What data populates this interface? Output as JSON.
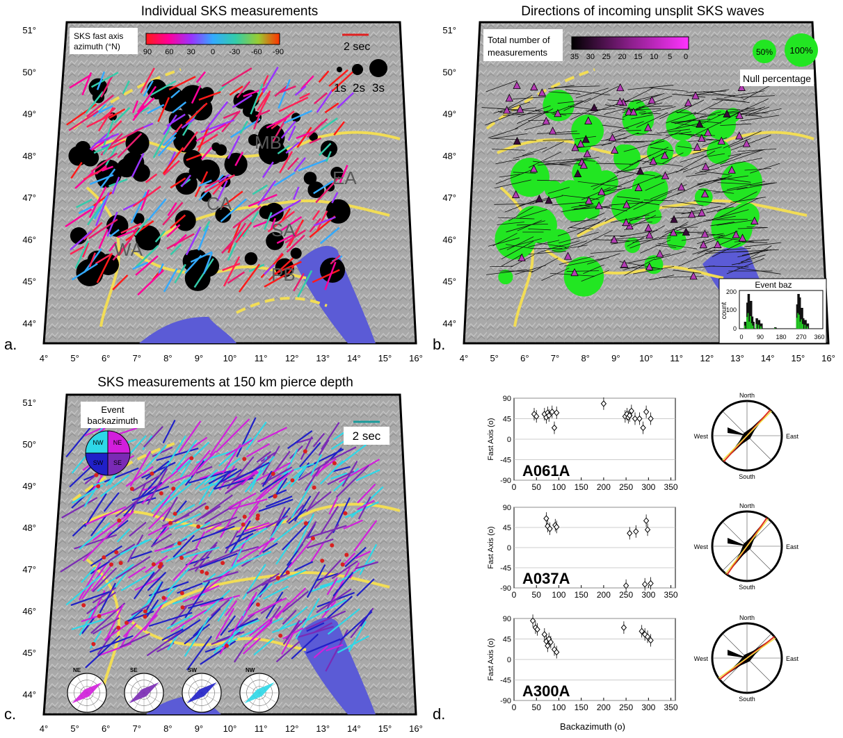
{
  "panels": {
    "a": {
      "letter": "a.",
      "title": "Individual SKS measurements",
      "legend_title_line1": "SKS fast axis",
      "legend_title_line2": "azimuth (°N)",
      "colorbar_ticks": [
        "90",
        "60",
        "30",
        "0",
        "-30",
        "-60",
        "-90"
      ],
      "scale_label": "2 sec",
      "size_labels": [
        "1s",
        "2s",
        "3s"
      ],
      "region_labels": [
        "MB",
        "EA",
        "CA",
        "SA",
        "WA",
        "PB"
      ]
    },
    "b": {
      "letter": "b.",
      "title": "Directions of incoming unsplit SKS waves",
      "legend_title_line1": "Total number of",
      "legend_title_line2": "measurements",
      "colorbar_ticks": [
        "35",
        "30",
        "25",
        "20",
        "15",
        "10",
        "5",
        "0"
      ],
      "null_labels": [
        "50%",
        "100%"
      ],
      "null_title": "Null percentage",
      "inset": {
        "title": "Event baz",
        "ylabel": "count",
        "yticks": [
          "0",
          "100",
          "200"
        ],
        "xticks": [
          "0",
          "90",
          "180",
          "270",
          "360"
        ]
      }
    },
    "c": {
      "letter": "c.",
      "title": "SKS measurements at 150 km pierce depth",
      "legend_title_line1": "Event",
      "legend_title_line2": "backazimuth",
      "quadrants": [
        "NW",
        "NE",
        "SW",
        "SE"
      ],
      "scale_label": "2 sec",
      "rose_labels": [
        "NE",
        "SE",
        "SW",
        "NW"
      ]
    },
    "d": {
      "letter": "d.",
      "xlabel": "Backazimuth (o)",
      "ylabel": "Fast Axis (o)",
      "compass": {
        "north": "North",
        "south": "South",
        "east": "East",
        "west": "West"
      }
    }
  },
  "map_axes": {
    "lon_labels": [
      "4°",
      "5°",
      "6°",
      "7°",
      "8°",
      "9°",
      "10°",
      "11°",
      "12°",
      "13°",
      "14°",
      "15°",
      "16°"
    ],
    "lat_labels": [
      "44°",
      "45°",
      "46°",
      "47°",
      "48°",
      "49°",
      "50°",
      "51°"
    ]
  },
  "colors": {
    "map_land": "#a9a9a9",
    "sea": "#5b5bd6",
    "faults": "#f2dd55",
    "null_disc": "#22e622",
    "station_triangle": "#b43cb4",
    "pierce_ne": "#d21edc",
    "pierce_se": "#7a2ab5",
    "pierce_sw": "#2020c8",
    "pierce_nw": "#2ed8e8"
  },
  "chart_data": [
    {
      "type": "scatter",
      "title": "A061A",
      "xlabel": "Backazimuth (o)",
      "ylabel": "Fast Axis (o)",
      "xlim": [
        0,
        360
      ],
      "ylim": [
        -90,
        90
      ],
      "xticks": [
        0,
        50,
        100,
        150,
        200,
        250,
        300,
        350
      ],
      "yticks": [
        90,
        45,
        0,
        -45,
        -90
      ],
      "points": [
        {
          "x": 45,
          "y": 55
        },
        {
          "x": 50,
          "y": 50
        },
        {
          "x": 68,
          "y": 55
        },
        {
          "x": 72,
          "y": 48
        },
        {
          "x": 75,
          "y": 58
        },
        {
          "x": 78,
          "y": 52
        },
        {
          "x": 85,
          "y": 60
        },
        {
          "x": 90,
          "y": 25
        },
        {
          "x": 95,
          "y": 58
        },
        {
          "x": 200,
          "y": 78
        },
        {
          "x": 248,
          "y": 50
        },
        {
          "x": 252,
          "y": 55
        },
        {
          "x": 255,
          "y": 48
        },
        {
          "x": 258,
          "y": 52
        },
        {
          "x": 262,
          "y": 62
        },
        {
          "x": 270,
          "y": 45
        },
        {
          "x": 280,
          "y": 45
        },
        {
          "x": 288,
          "y": 25
        },
        {
          "x": 295,
          "y": 60
        },
        {
          "x": 305,
          "y": 45
        }
      ]
    },
    {
      "type": "scatter",
      "title": "A037A",
      "xlabel": "Backazimuth (o)",
      "ylabel": "Fast Axis (o)",
      "xlim": [
        0,
        360
      ],
      "ylim": [
        -90,
        90
      ],
      "xticks": [
        0,
        50,
        100,
        150,
        200,
        250,
        300,
        350
      ],
      "yticks": [
        90,
        45,
        0,
        -45,
        -90
      ],
      "points": [
        {
          "x": 72,
          "y": 65
        },
        {
          "x": 75,
          "y": 48
        },
        {
          "x": 80,
          "y": 42
        },
        {
          "x": 92,
          "y": 50
        },
        {
          "x": 95,
          "y": 46
        },
        {
          "x": 250,
          "y": -85
        },
        {
          "x": 258,
          "y": 32
        },
        {
          "x": 272,
          "y": 36
        },
        {
          "x": 292,
          "y": -82
        },
        {
          "x": 295,
          "y": 60
        },
        {
          "x": 298,
          "y": 40
        },
        {
          "x": 305,
          "y": -80
        }
      ]
    },
    {
      "type": "scatter",
      "title": "A300A",
      "xlabel": "Backazimuth (o)",
      "ylabel": "Fast Axis (o)",
      "xlim": [
        0,
        360
      ],
      "ylim": [
        -90,
        90
      ],
      "xticks": [
        0,
        50,
        100,
        150,
        200,
        250,
        300,
        350
      ],
      "yticks": [
        90,
        45,
        0,
        -45,
        -90
      ],
      "points": [
        {
          "x": 42,
          "y": 85
        },
        {
          "x": 48,
          "y": 70
        },
        {
          "x": 52,
          "y": 66
        },
        {
          "x": 68,
          "y": 55
        },
        {
          "x": 72,
          "y": 40
        },
        {
          "x": 75,
          "y": 30
        },
        {
          "x": 78,
          "y": 45
        },
        {
          "x": 82,
          "y": 38
        },
        {
          "x": 90,
          "y": 22
        },
        {
          "x": 95,
          "y": 16
        },
        {
          "x": 245,
          "y": 70
        },
        {
          "x": 285,
          "y": 62
        },
        {
          "x": 292,
          "y": 55
        },
        {
          "x": 298,
          "y": 50
        },
        {
          "x": 305,
          "y": 42
        }
      ]
    }
  ]
}
